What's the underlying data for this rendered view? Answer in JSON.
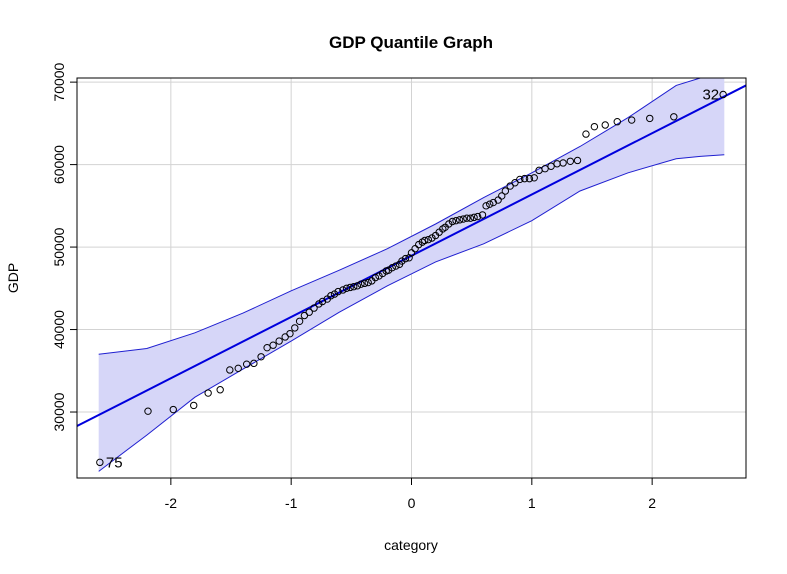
{
  "chart_data": {
    "type": "scatter",
    "title": "GDP Quantile Graph",
    "xlabel": "category",
    "ylabel": "GDP",
    "xlim": [
      -2.78,
      2.78
    ],
    "ylim": [
      22000,
      70500
    ],
    "xticks": [
      "-2",
      "-1",
      "0",
      "1",
      "2"
    ],
    "yticks": [
      "30000",
      "40000",
      "50000",
      "60000",
      "70000"
    ],
    "grid": true,
    "colors": {
      "reference_line": "#0000dd",
      "envelope_fill": "#d6d6f8",
      "envelope_edge": "#1f1fd0",
      "points": "#000000",
      "grid": "#d3d3d3"
    },
    "reference_line": {
      "x": [
        -2.78,
        2.78
      ],
      "y": [
        28300,
        69600
      ]
    },
    "envelope_upper": {
      "x": [
        -2.6,
        -2.2,
        -1.8,
        -1.4,
        -1.0,
        -0.6,
        -0.2,
        0.2,
        0.6,
        1.0,
        1.4,
        1.8,
        2.2,
        2.4,
        2.6
      ],
      "y": [
        37000,
        37700,
        39600,
        42000,
        44700,
        47200,
        49800,
        52800,
        56000,
        59000,
        62200,
        65700,
        69600,
        71000,
        71000
      ]
    },
    "envelope_lower": {
      "x": [
        -2.6,
        -2.2,
        -1.8,
        -1.4,
        -1.0,
        -0.6,
        -0.2,
        0.2,
        0.6,
        1.0,
        1.4,
        1.8,
        2.2,
        2.4,
        2.6
      ],
      "y": [
        22800,
        27200,
        31800,
        35200,
        38600,
        42100,
        45300,
        48200,
        50400,
        53200,
        56800,
        59000,
        60700,
        61000,
        61200
      ]
    },
    "points": {
      "x": [
        -2.59,
        -2.19,
        -1.98,
        -1.81,
        -1.69,
        -1.59,
        -1.51,
        -1.44,
        -1.37,
        -1.31,
        -1.25,
        -1.2,
        -1.15,
        -1.1,
        -1.05,
        -1.01,
        -0.97,
        -0.93,
        -0.89,
        -0.85,
        -0.81,
        -0.77,
        -0.74,
        -0.7,
        -0.67,
        -0.64,
        -0.61,
        -0.57,
        -0.54,
        -0.51,
        -0.48,
        -0.45,
        -0.42,
        -0.39,
        -0.36,
        -0.33,
        -0.3,
        -0.27,
        -0.24,
        -0.21,
        -0.19,
        -0.16,
        -0.13,
        -0.1,
        -0.08,
        -0.05,
        -0.02,
        0.0,
        0.03,
        0.06,
        0.09,
        0.11,
        0.14,
        0.17,
        0.2,
        0.23,
        0.26,
        0.28,
        0.31,
        0.34,
        0.37,
        0.4,
        0.43,
        0.46,
        0.49,
        0.52,
        0.55,
        0.59,
        0.62,
        0.65,
        0.68,
        0.72,
        0.75,
        0.78,
        0.82,
        0.86,
        0.9,
        0.94,
        0.98,
        1.02,
        1.06,
        1.11,
        1.16,
        1.21,
        1.26,
        1.32,
        1.38,
        1.45,
        1.52,
        1.61,
        1.71,
        1.83,
        1.98,
        2.18,
        2.59
      ],
      "y": [
        23900,
        30100,
        30300,
        30800,
        32300,
        32700,
        35100,
        35300,
        35800,
        35900,
        36700,
        37800,
        38100,
        38600,
        39100,
        39500,
        40200,
        41000,
        41700,
        42100,
        42600,
        43100,
        43400,
        43700,
        44100,
        44300,
        44600,
        44800,
        45000,
        45100,
        45200,
        45300,
        45500,
        45600,
        45700,
        45900,
        46300,
        46500,
        46800,
        47100,
        47200,
        47500,
        47700,
        47900,
        48300,
        48600,
        48700,
        49300,
        49800,
        50300,
        50600,
        50800,
        50900,
        51100,
        51400,
        51800,
        52200,
        52400,
        52800,
        53100,
        53200,
        53300,
        53400,
        53500,
        53500,
        53600,
        53700,
        53900,
        55000,
        55200,
        55400,
        55700,
        56200,
        56800,
        57400,
        57800,
        58200,
        58300,
        58300,
        58400,
        59300,
        59500,
        59800,
        60100,
        60200,
        60400,
        60500,
        63700,
        64600,
        64800,
        65200,
        65400,
        65600,
        65800,
        68500
      ]
    },
    "annotations": [
      {
        "text": "75",
        "x": -2.59,
        "y": 23900
      },
      {
        "text": "32",
        "x": 2.59,
        "y": 68500
      }
    ]
  }
}
